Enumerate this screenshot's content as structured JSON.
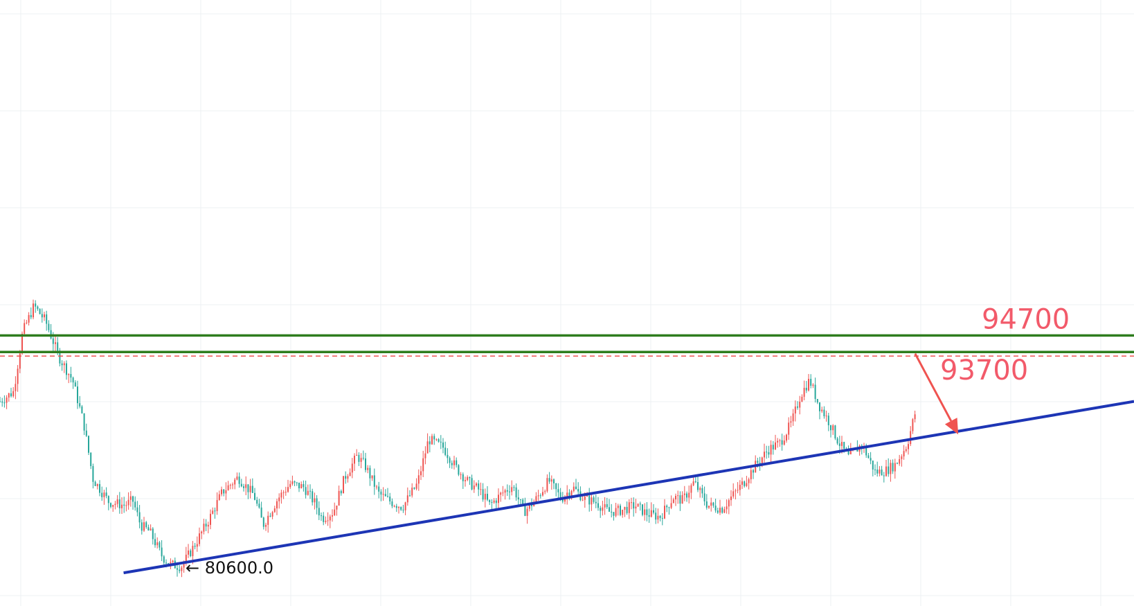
{
  "chart_data": {
    "type": "candlestick",
    "colors": {
      "up": "#ef5350",
      "down": "#26a69a",
      "resistance": "#2e7d1e",
      "support_trend": "#1d35b5",
      "current_price": "#ef5350",
      "label": "#f25a6a",
      "arrow": "#ef5350"
    },
    "resistance_levels": [
      {
        "value": 94700,
        "label": "94700"
      },
      {
        "value": 93700,
        "label": "93700"
      }
    ],
    "current_price": 93450,
    "low_annotation": {
      "value": 80600,
      "label": "← 80600.0"
    },
    "trendline": {
      "from": [
        0.109,
        80300
      ],
      "to": [
        1.0,
        90700
      ]
    },
    "arrow": {
      "from": [
        0.807,
        93600
      ],
      "to": [
        0.845,
        88700
      ]
    },
    "price_path": [
      [
        0.0,
        90700
      ],
      [
        0.012,
        91300
      ],
      [
        0.02,
        94900
      ],
      [
        0.03,
        96500
      ],
      [
        0.04,
        95600
      ],
      [
        0.052,
        93400
      ],
      [
        0.064,
        92000
      ],
      [
        0.074,
        89300
      ],
      [
        0.082,
        86000
      ],
      [
        0.096,
        84600
      ],
      [
        0.11,
        84400
      ],
      [
        0.117,
        84700
      ],
      [
        0.124,
        83200
      ],
      [
        0.132,
        82800
      ],
      [
        0.143,
        81300
      ],
      [
        0.15,
        80800
      ],
      [
        0.16,
        80700
      ],
      [
        0.17,
        81800
      ],
      [
        0.184,
        83500
      ],
      [
        0.196,
        85200
      ],
      [
        0.21,
        86100
      ],
      [
        0.224,
        85000
      ],
      [
        0.232,
        83200
      ],
      [
        0.245,
        84800
      ],
      [
        0.256,
        85700
      ],
      [
        0.268,
        85500
      ],
      [
        0.278,
        84500
      ],
      [
        0.284,
        83600
      ],
      [
        0.294,
        84000
      ],
      [
        0.304,
        86100
      ],
      [
        0.315,
        87400
      ],
      [
        0.322,
        86800
      ],
      [
        0.334,
        85100
      ],
      [
        0.345,
        84600
      ],
      [
        0.355,
        84300
      ],
      [
        0.368,
        85700
      ],
      [
        0.378,
        88400
      ],
      [
        0.391,
        87900
      ],
      [
        0.402,
        86700
      ],
      [
        0.413,
        85800
      ],
      [
        0.423,
        85300
      ],
      [
        0.432,
        84400
      ],
      [
        0.444,
        85200
      ],
      [
        0.452,
        85600
      ],
      [
        0.462,
        84000
      ],
      [
        0.472,
        84700
      ],
      [
        0.484,
        85900
      ],
      [
        0.495,
        84800
      ],
      [
        0.505,
        85500
      ],
      [
        0.515,
        84800
      ],
      [
        0.525,
        84600
      ],
      [
        0.537,
        84000
      ],
      [
        0.548,
        84100
      ],
      [
        0.56,
        84400
      ],
      [
        0.57,
        83900
      ],
      [
        0.582,
        83700
      ],
      [
        0.594,
        84900
      ],
      [
        0.602,
        84700
      ],
      [
        0.612,
        85800
      ],
      [
        0.624,
        84400
      ],
      [
        0.637,
        84200
      ],
      [
        0.645,
        84900
      ],
      [
        0.656,
        85800
      ],
      [
        0.667,
        86900
      ],
      [
        0.678,
        87800
      ],
      [
        0.688,
        88200
      ],
      [
        0.698,
        89400
      ],
      [
        0.706,
        91100
      ],
      [
        0.714,
        92000
      ],
      [
        0.722,
        90500
      ],
      [
        0.73,
        89600
      ],
      [
        0.739,
        88300
      ],
      [
        0.748,
        87300
      ],
      [
        0.76,
        88100
      ],
      [
        0.772,
        86400
      ],
      [
        0.781,
        86500
      ],
      [
        0.79,
        86900
      ],
      [
        0.8,
        88100
      ],
      [
        0.807,
        90000
      ]
    ]
  }
}
